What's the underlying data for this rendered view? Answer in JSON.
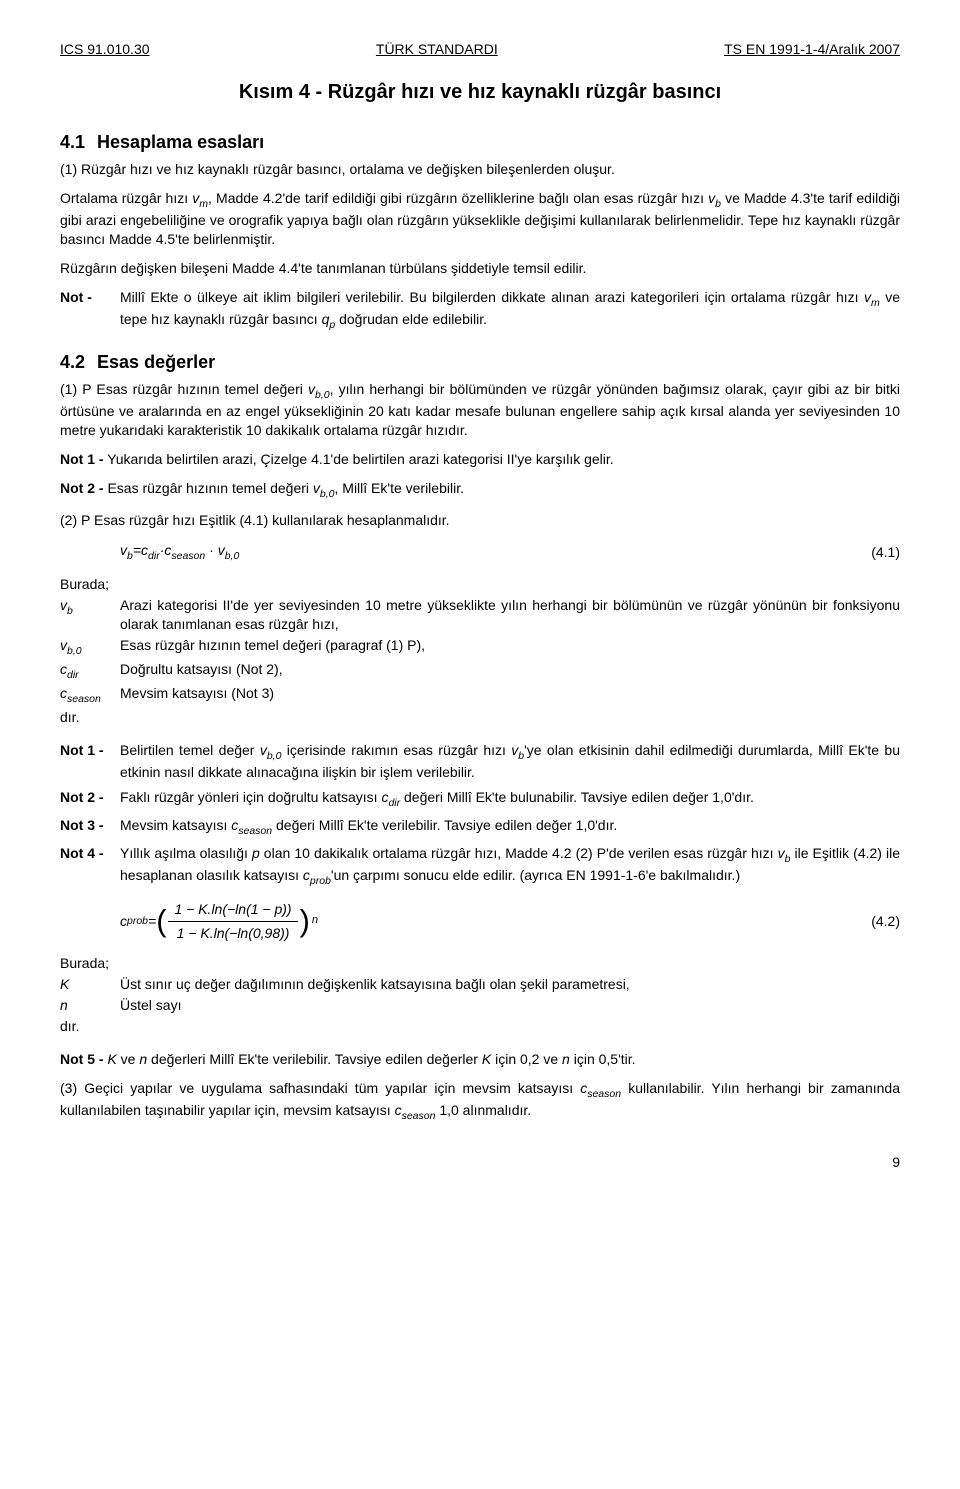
{
  "header": {
    "left": "ICS 91.010.30",
    "center": "TÜRK STANDARDI",
    "right": "TS EN 1991-1-4/Aralık 2007"
  },
  "title": "Kısım 4 - Rüzgâr hızı ve hız kaynaklı rüzgâr basıncı",
  "s41": {
    "num": "4.1",
    "heading": "Hesaplama esasları",
    "p1": "(1) Rüzgâr hızı ve hız kaynaklı rüzgâr basıncı, ortalama ve değişken bileşenlerden oluşur.",
    "p2_a": "Ortalama rüzgâr hızı ",
    "p2_vm": "v",
    "p2_vm_sub": "m",
    "p2_b": ", Madde 4.2'de tarif edildiği gibi rüzgârın özelliklerine bağlı olan esas rüzgâr hızı ",
    "p2_vb": "v",
    "p2_vb_sub": "b",
    "p2_c": " ve Madde 4.3'te tarif edildiği gibi arazi engebeliliğine ve orografik yapıya bağlı olan rüzgârın yükseklikle değişimi kullanılarak belirlenmelidir. Tepe hız kaynaklı rüzgâr basıncı Madde 4.5'te belirlenmiştir.",
    "p3": "Rüzgârın değişken bileşeni Madde 4.4'te tanımlanan türbülans şiddetiyle temsil edilir.",
    "note_label": "Not -",
    "note_a": "Millî Ekte o ülkeye ait iklim bilgileri verilebilir. Bu bilgilerden dikkate alınan arazi kategorileri için ortalama rüzgâr hızı ",
    "note_vm": "v",
    "note_vm_sub": "m",
    "note_b": " ve tepe hız kaynaklı rüzgâr basıncı ",
    "note_qp": "q",
    "note_qp_sub": "p",
    "note_c": " doğrudan elde edilebilir."
  },
  "s42": {
    "num": "4.2",
    "heading": "Esas değerler",
    "p1_a": "(1) P Esas rüzgâr hızının temel değeri ",
    "p1_vb0": "v",
    "p1_vb0_sub": "b,0",
    "p1_b": ", yılın herhangi bir bölümünden ve rüzgâr yönünden bağımsız olarak, çayır gibi az bir bitki örtüsüne ve aralarında en az engel yüksekliğinin 20 katı kadar mesafe bulunan engellere sahip açık kırsal alanda yer seviyesinden 10 metre yukarıdaki karakteristik 10 dakikalık ortalama rüzgâr hızıdır.",
    "n1_label": "Not 1 -",
    "n1": "Yukarıda belirtilen arazi, Çizelge 4.1'de belirtilen arazi kategorisi II'ye karşılık gelir.",
    "n2_label": "Not 2 -",
    "n2_a": "Esas rüzgâr hızının temel değeri ",
    "n2_vb0": "v",
    "n2_vb0_sub": "b,0",
    "n2_b": ", Millî Ek'te verilebilir.",
    "p2": "(2) P Esas rüzgâr hızı Eşitlik (4.1) kullanılarak hesaplanmalıdır.",
    "eq41_lhs_v": "v",
    "eq41_lhs_v_sub": "b",
    "eq41_eq": "=",
    "eq41_c1": "c",
    "eq41_c1_sub": "dir",
    "eq41_dot": "·",
    "eq41_c2": "c",
    "eq41_c2_sub": "season",
    "eq41_dot2": " · ",
    "eq41_v2": "v",
    "eq41_v2_sub": "b,0",
    "eq41_tag": "(4.1)",
    "burada": "Burada;",
    "def_vb_sym": "v",
    "def_vb_sub": "b",
    "def_vb": "Arazi kategorisi II'de yer seviyesinden 10 metre yükseklikte yılın herhangi bir bölümünün ve rüzgâr yönünün bir fonksiyonu olarak tanımlanan esas rüzgâr hızı,",
    "def_vb0_sym": "v",
    "def_vb0_sub": "b,0",
    "def_vb0": "Esas rüzgâr hızının temel değeri (paragraf (1) P),",
    "def_cdir_sym": "c",
    "def_cdir_sub": "dir",
    "def_cdir": "Doğrultu katsayısı (Not 2),",
    "def_cs_sym": "c",
    "def_cs_sub": "season",
    "def_cs": "Mevsim katsayısı (Not 3)",
    "dir_end": "dır.",
    "bn1_label": "Not 1 -",
    "bn1_a": "Belirtilen temel değer ",
    "bn1_vb0": "v",
    "bn1_vb0_sub": "b,0",
    "bn1_b": " içerisinde rakımın esas rüzgâr hızı ",
    "bn1_vb": "v",
    "bn1_vb_sub": "b",
    "bn1_c": "'ye olan etkisinin dahil edilmediği durumlarda, Millî Ek'te bu etkinin nasıl dikkate alınacağına ilişkin bir işlem verilebilir.",
    "bn2_label": "Not 2 -",
    "bn2_a": "Faklı rüzgâr yönleri için doğrultu katsayısı ",
    "bn2_c": "c",
    "bn2_c_sub": "dir",
    "bn2_b": " değeri Millî Ek'te bulunabilir.  Tavsiye edilen değer 1,0'dır.",
    "bn3_label": "Not 3 -",
    "bn3_a": "Mevsim katsayısı ",
    "bn3_c": "c",
    "bn3_c_sub": "season",
    "bn3_b": " değeri Millî Ek'te verilebilir.  Tavsiye edilen değer 1,0'dır.",
    "bn4_label": "Not 4 -",
    "bn4_a": "Yıllık aşılma olasılığı ",
    "bn4_p": "p",
    "bn4_b": " olan 10 dakikalık ortalama rüzgâr hızı, Madde 4.2 (2) P'de verilen esas rüzgâr hızı ",
    "bn4_vb": "v",
    "bn4_vb_sub": "b",
    "bn4_c": " ile Eşitlik (4.2) ile hesaplanan olasılık katsayısı ",
    "bn4_cp": "c",
    "bn4_cp_sub": "prob",
    "bn4_d": "'un çarpımı sonucu elde edilir. (ayrıca EN 1991-1-6'e bakılmalıdır.)",
    "eq42_lhs": "c",
    "eq42_lhs_sub": "prob",
    "eq42_eq": " = ",
    "eq42_num": "1 − K.ln(−ln(1 − p))",
    "eq42_den": "1 − K.ln(−ln(0,98))",
    "eq42_exp": "n",
    "eq42_tag": "(4.2)",
    "burada2": "Burada;",
    "def_K_sym": "K",
    "def_K": "Üst sınır uç değer dağılımının değişkenlik katsayısına bağlı olan şekil parametresi,",
    "def_n_sym": "n",
    "def_n": "Üstel sayı",
    "dir_end2": "dır.",
    "bn5_label": "Not 5 -",
    "bn5_a": "K",
    "bn5_b": " ve ",
    "bn5_c": "n",
    "bn5_d": " değerleri Millî Ek'te verilebilir.  Tavsiye edilen değerler ",
    "bn5_e": "K",
    "bn5_f": " için 0,2 ve ",
    "bn5_g": "n",
    "bn5_h": " için 0,5'tir.",
    "p3_a": "(3) Geçici yapılar ve uygulama safhasındaki tüm yapılar için mevsim katsayısı ",
    "p3_c": "c",
    "p3_c_sub": "season",
    "p3_b": " kullanılabilir. Yılın herhangi bir zamanında kullanılabilen taşınabilir yapılar için, mevsim katsayısı ",
    "p3_c2": "c",
    "p3_c2_sub": "season",
    "p3_d": " 1,0 alınmalıdır."
  },
  "page_num": "9"
}
